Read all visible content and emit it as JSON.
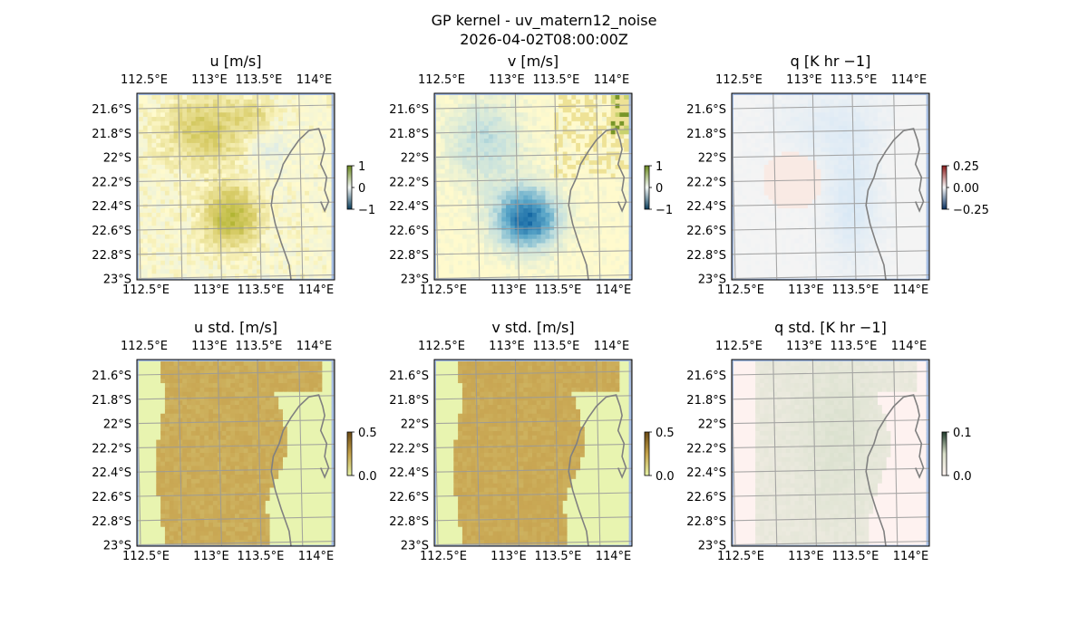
{
  "suptitle": {
    "line1": "GP kernel - uv_matern12_noise",
    "line2": "2026-04-02T08:00:00Z"
  },
  "chart_data": [
    {
      "type": "heatmap",
      "title": "u [m/s]",
      "xticks": [
        "112.5°E",
        "113°E",
        "113.5°E",
        "114°E"
      ],
      "yticks": [
        "21.6°S",
        "21.8°S",
        "22°S",
        "22.2°S",
        "22.4°S",
        "22.6°S",
        "22.8°S",
        "23°S"
      ],
      "colorbar": {
        "ticks": [
          "1",
          "0",
          "−1"
        ],
        "range": [
          -1,
          1
        ],
        "colors": [
          "#0a3d5c",
          "#f2f7f5",
          "#6b8a1e"
        ]
      },
      "field": "u",
      "coastline": true,
      "grid": true
    },
    {
      "type": "heatmap",
      "title": "v [m/s]",
      "xticks": [
        "112.5°E",
        "113°E",
        "113.5°E",
        "114°E"
      ],
      "yticks": [
        "21.6°S",
        "21.8°S",
        "22°S",
        "22.2°S",
        "22.4°S",
        "22.6°S",
        "22.8°S",
        "23°S"
      ],
      "colorbar": {
        "ticks": [
          "1",
          "0",
          "−1"
        ],
        "range": [
          -1,
          1
        ],
        "colors": [
          "#0a3d5c",
          "#f2f7f5",
          "#6b8a1e"
        ]
      },
      "field": "v",
      "coastline": true,
      "grid": true
    },
    {
      "type": "heatmap",
      "title": "q [K hr −1]",
      "xticks": [
        "112.5°E",
        "113°E",
        "113.5°E",
        "114°E"
      ],
      "yticks": [
        "21.6°S",
        "21.8°S",
        "22°S",
        "22.2°S",
        "22.4°S",
        "22.6°S",
        "22.8°S",
        "23°S"
      ],
      "colorbar": {
        "ticks": [
          "0.25",
          "0.00",
          "−0.25"
        ],
        "range": [
          -0.25,
          0.25
        ],
        "colors": [
          "#083060",
          "#f7f7f7",
          "#8b1a1a"
        ]
      },
      "field": "q",
      "coastline": true,
      "grid": true
    },
    {
      "type": "heatmap",
      "title": "u std. [m/s]",
      "xticks": [
        "112.5°E",
        "113°E",
        "113.5°E",
        "114°E"
      ],
      "yticks": [
        "21.6°S",
        "21.8°S",
        "22°S",
        "22.2°S",
        "22.4°S",
        "22.6°S",
        "22.8°S",
        "23°S"
      ],
      "colorbar": {
        "ticks": [
          "0.5",
          "0.0"
        ],
        "range": [
          0,
          0.5
        ],
        "colors": [
          "#e6f2a6",
          "#c4a24a",
          "#6b4a14"
        ]
      },
      "field": "std",
      "coastline": true,
      "grid": true
    },
    {
      "type": "heatmap",
      "title": "v std. [m/s]",
      "xticks": [
        "112.5°E",
        "113°E",
        "113.5°E",
        "114°E"
      ],
      "yticks": [
        "21.6°S",
        "21.8°S",
        "22°S",
        "22.2°S",
        "22.4°S",
        "22.6°S",
        "22.8°S",
        "23°S"
      ],
      "colorbar": {
        "ticks": [
          "0.5",
          "0.0"
        ],
        "range": [
          0,
          0.5
        ],
        "colors": [
          "#e6f2a6",
          "#c4a24a",
          "#6b4a14"
        ]
      },
      "field": "vstd",
      "coastline": true,
      "grid": true
    },
    {
      "type": "heatmap",
      "title": "q std. [K hr −1]",
      "xticks": [
        "112.5°E",
        "113°E",
        "113.5°E",
        "114°E"
      ],
      "yticks": [
        "21.6°S",
        "21.8°S",
        "22°S",
        "22.2°S",
        "22.4°S",
        "22.6°S",
        "22.8°S",
        "23°S"
      ],
      "colorbar": {
        "ticks": [
          "0.1",
          "0.0"
        ],
        "range": [
          0,
          0.1
        ],
        "colors": [
          "#fff5f2",
          "#d9dfc9",
          "#1e3a2a"
        ]
      },
      "field": "qstd",
      "coastline": true,
      "grid": true
    }
  ]
}
